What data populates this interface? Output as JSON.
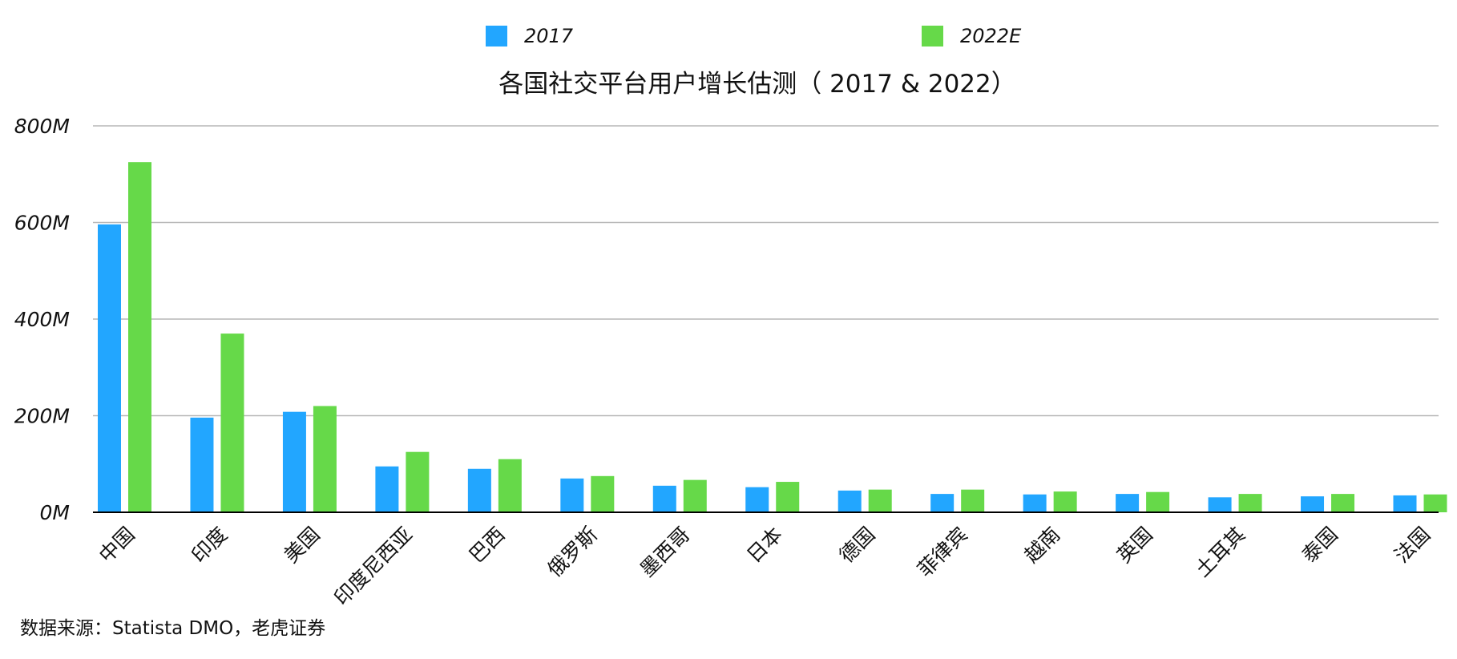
{
  "colors": {
    "series_2017": "#22a6ff",
    "series_2022E": "#66d949"
  },
  "source": "数据来源：Statista DMO，老虎证券",
  "chart_data": {
    "type": "bar",
    "title": "各国社交平台用户增长估测（ 2017 & 2022）",
    "xlabel": "",
    "ylabel": "",
    "ylim": [
      0,
      800
    ],
    "yticks": [
      0,
      200,
      400,
      600,
      800
    ],
    "ytick_labels": [
      "0M",
      "200M",
      "400M",
      "600M",
      "800M"
    ],
    "grid": true,
    "legend_position": "top",
    "categories": [
      "中国",
      "印度",
      "美国",
      "印度尼西亚",
      "巴西",
      "俄罗斯",
      "墨西哥",
      "日本",
      "德国",
      "菲律宾",
      "越南",
      "英国",
      "土耳其",
      "泰国",
      "法国"
    ],
    "series": [
      {
        "name": "2017",
        "values": [
          596,
          196,
          208,
          95,
          90,
          70,
          55,
          52,
          45,
          38,
          37,
          38,
          31,
          33,
          35
        ]
      },
      {
        "name": "2022E",
        "values": [
          725,
          370,
          220,
          125,
          110,
          75,
          67,
          63,
          47,
          47,
          43,
          42,
          38,
          38,
          37
        ]
      }
    ]
  }
}
